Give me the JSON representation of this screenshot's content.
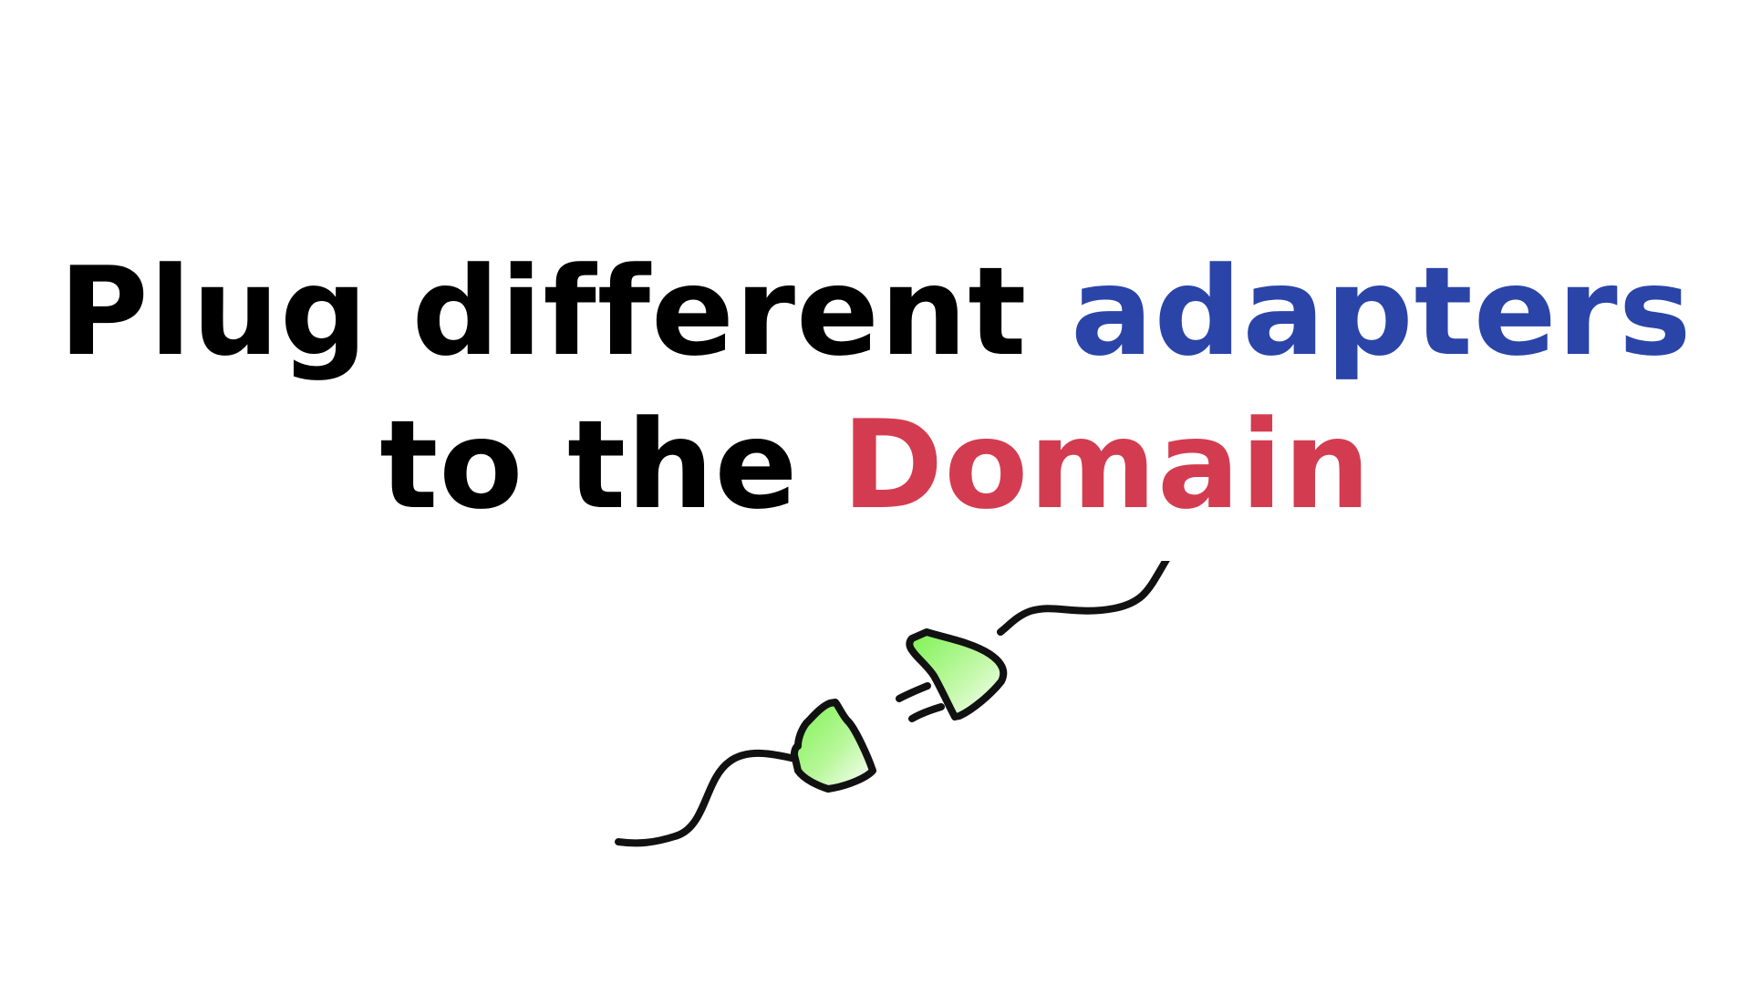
{
  "headline": {
    "line1": {
      "text_before": "Plug different",
      "highlight": "adapters"
    },
    "line2": {
      "text_before": "to the",
      "highlight": "Domain"
    }
  },
  "colors": {
    "text": "#000000",
    "adapters_highlight": "#2a44a8",
    "domain_highlight": "#d33c50",
    "plug_fill": "#7cf250",
    "plug_outline": "#111111",
    "background": "#ffffff"
  },
  "illustration": {
    "icon": "unplugged-power-plug-icon"
  }
}
